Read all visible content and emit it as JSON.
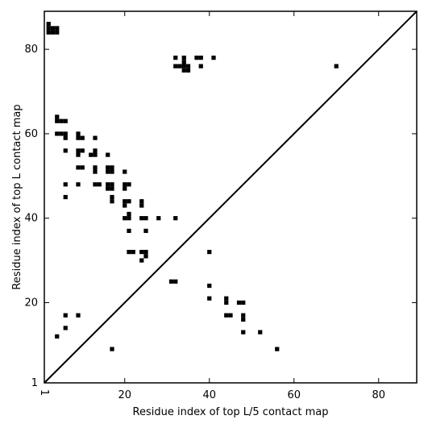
{
  "chart_data": {
    "type": "heatmap",
    "xlabel": "Residue index of top L/5 contact map",
    "ylabel": "Residue index of top L contact map",
    "xlim": [
      1,
      89
    ],
    "ylim": [
      1,
      89
    ],
    "x_ticks": [
      1,
      20,
      40,
      60,
      80
    ],
    "x_tick_labels": [
      "1",
      "20",
      "40",
      "60",
      "80"
    ],
    "y_ticks": [
      1,
      20,
      40,
      60,
      80
    ],
    "y_tick_labels": [
      "1",
      "20",
      "40",
      "60",
      "80"
    ],
    "diagonal": true,
    "grid": false,
    "cell_color": "#000000",
    "upper_left_points": [
      [
        2,
        84
      ],
      [
        2,
        85
      ],
      [
        2,
        86
      ],
      [
        3,
        84
      ],
      [
        3,
        85
      ],
      [
        4,
        84
      ],
      [
        4,
        85
      ],
      [
        4,
        60
      ],
      [
        4,
        63
      ],
      [
        4,
        64
      ],
      [
        5,
        60
      ],
      [
        5,
        63
      ],
      [
        6,
        56
      ],
      [
        6,
        59
      ],
      [
        6,
        60
      ],
      [
        6,
        63
      ],
      [
        9,
        55
      ],
      [
        9,
        56
      ],
      [
        9,
        59
      ],
      [
        9,
        60
      ],
      [
        10,
        56
      ],
      [
        10,
        59
      ],
      [
        9,
        52
      ],
      [
        10,
        52
      ],
      [
        12,
        55
      ],
      [
        13,
        55
      ],
      [
        13,
        56
      ],
      [
        13,
        59
      ],
      [
        13,
        51
      ],
      [
        13,
        52
      ],
      [
        16,
        55
      ],
      [
        16,
        51
      ],
      [
        16,
        52
      ],
      [
        17,
        51
      ],
      [
        17,
        52
      ],
      [
        16,
        47
      ],
      [
        16,
        48
      ],
      [
        17,
        47
      ],
      [
        17,
        48
      ],
      [
        6,
        48
      ],
      [
        9,
        48
      ],
      [
        13,
        48
      ],
      [
        14,
        48
      ],
      [
        6,
        45
      ],
      [
        17,
        44
      ],
      [
        17,
        45
      ],
      [
        20,
        51
      ],
      [
        20,
        47
      ],
      [
        20,
        48
      ],
      [
        21,
        48
      ],
      [
        20,
        44
      ],
      [
        21,
        44
      ],
      [
        20,
        43
      ],
      [
        20,
        40
      ],
      [
        21,
        40
      ],
      [
        21,
        41
      ],
      [
        24,
        43
      ],
      [
        24,
        44
      ],
      [
        24,
        40
      ],
      [
        25,
        40
      ],
      [
        21,
        37
      ],
      [
        25,
        37
      ],
      [
        28,
        40
      ],
      [
        32,
        40
      ],
      [
        21,
        32
      ],
      [
        22,
        32
      ],
      [
        24,
        32
      ],
      [
        25,
        32
      ],
      [
        25,
        31
      ],
      [
        24,
        30
      ],
      [
        31,
        25
      ],
      [
        32,
        25
      ],
      [
        32,
        76
      ],
      [
        32,
        78
      ],
      [
        33,
        76
      ],
      [
        34,
        75
      ],
      [
        34,
        76
      ],
      [
        34,
        77
      ],
      [
        34,
        78
      ],
      [
        35,
        75
      ],
      [
        35,
        76
      ],
      [
        37,
        78
      ],
      [
        38,
        76
      ],
      [
        38,
        78
      ],
      [
        41,
        78
      ],
      [
        70,
        76
      ]
    ],
    "lower_right_points": [
      [
        6,
        17
      ],
      [
        9,
        17
      ],
      [
        6,
        14
      ],
      [
        4,
        12
      ],
      [
        17,
        9
      ],
      [
        40,
        32
      ],
      [
        40,
        24
      ],
      [
        40,
        21
      ],
      [
        44,
        20
      ],
      [
        44,
        21
      ],
      [
        44,
        17
      ],
      [
        45,
        17
      ],
      [
        47,
        20
      ],
      [
        48,
        20
      ],
      [
        48,
        17
      ],
      [
        48,
        16
      ],
      [
        48,
        13
      ],
      [
        52,
        13
      ],
      [
        56,
        9
      ]
    ]
  }
}
